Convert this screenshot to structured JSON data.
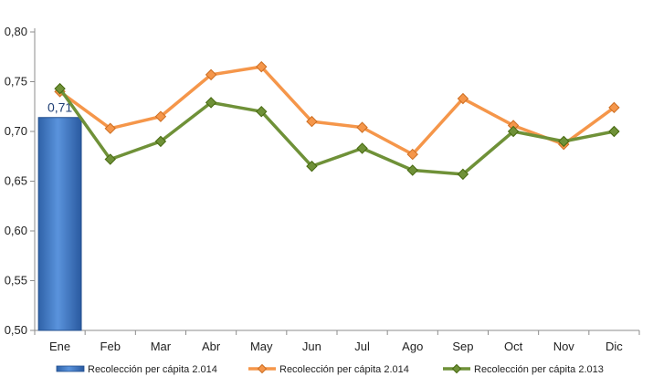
{
  "chart_data": {
    "type": "bar+line",
    "title": "",
    "xlabel": "",
    "ylabel": "",
    "categories": [
      "Ene",
      "Feb",
      "Mar",
      "Abr",
      "May",
      "Jun",
      "Jul",
      "Ago",
      "Sep",
      "Oct",
      "Nov",
      "Dic"
    ],
    "ylim": [
      0.5,
      0.8
    ],
    "yticks": [
      "0,50",
      "0,55",
      "0,60",
      "0,65",
      "0,70",
      "0,75",
      "0,80"
    ],
    "grid": false,
    "legend_position": "bottom",
    "series": [
      {
        "name": "Recolección per cápita 2.014",
        "kind": "bar",
        "color": "#3a78c8",
        "values": [
          0.714,
          null,
          null,
          null,
          null,
          null,
          null,
          null,
          null,
          null,
          null,
          null
        ],
        "data_labels": [
          "0,71"
        ]
      },
      {
        "name": "Recolección per cápita 2.014",
        "kind": "line",
        "color": "#f5964a",
        "values": [
          0.74,
          0.703,
          0.715,
          0.757,
          0.765,
          0.71,
          0.704,
          0.677,
          0.733,
          0.706,
          0.687,
          0.724
        ]
      },
      {
        "name": "Recolección per cápita 2.013",
        "kind": "line",
        "color": "#6f9138",
        "values": [
          0.743,
          0.672,
          0.69,
          0.729,
          0.72,
          0.665,
          0.683,
          0.661,
          0.657,
          0.7,
          0.69,
          0.7
        ]
      }
    ]
  }
}
